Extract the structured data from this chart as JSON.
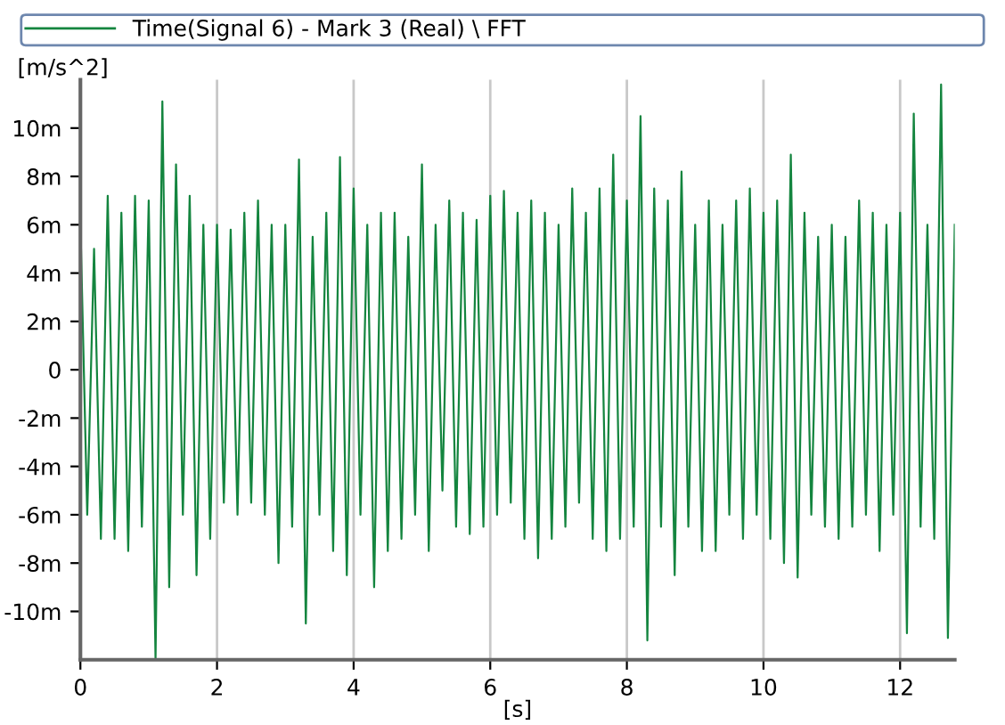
{
  "chart_data": {
    "type": "line",
    "xlabel": "[s]",
    "ylabel": "[m/s^2]",
    "legend": "top",
    "grid": "x",
    "line_style": "solid",
    "marker": "none",
    "xlim": [
      0,
      12.8
    ],
    "xticks": [
      0,
      2,
      4,
      6,
      8,
      10,
      12
    ],
    "ylim": [
      -12,
      12
    ],
    "yticks": [
      {
        "value": -10,
        "label": "-10m"
      },
      {
        "value": -8,
        "label": "-8m"
      },
      {
        "value": -6,
        "label": "-6m"
      },
      {
        "value": -4,
        "label": "-4m"
      },
      {
        "value": -2,
        "label": "-2m"
      },
      0,
      {
        "value": 2,
        "label": "2m"
      },
      {
        "value": 4,
        "label": "4m"
      },
      {
        "value": 6,
        "label": "6m"
      },
      {
        "value": 8,
        "label": "8m"
      },
      {
        "value": 10,
        "label": "10m"
      }
    ],
    "x": [
      0,
      0.1,
      0.2,
      0.3,
      0.4,
      0.5,
      0.6,
      0.7,
      0.8,
      0.9,
      1,
      1.1,
      1.2,
      1.3,
      1.4,
      1.5,
      1.6,
      1.7,
      1.8,
      1.9,
      2,
      2.1,
      2.2,
      2.3,
      2.4,
      2.5,
      2.6,
      2.7,
      2.8,
      2.9,
      3,
      3.1,
      3.2,
      3.3,
      3.4,
      3.5,
      3.6,
      3.7,
      3.8,
      3.9,
      4,
      4.1,
      4.2,
      4.3,
      4.4,
      4.5,
      4.6,
      4.7,
      4.8,
      4.9,
      5,
      5.1,
      5.2,
      5.3,
      5.4,
      5.5,
      5.6,
      5.7,
      5.8,
      5.9,
      6,
      6.1,
      6.2,
      6.3,
      6.4,
      6.5,
      6.6,
      6.7,
      6.8,
      6.9,
      7,
      7.1,
      7.2,
      7.3,
      7.4,
      7.5,
      7.6,
      7.7,
      7.8,
      7.9,
      8,
      8.1,
      8.2,
      8.3,
      8.4,
      8.5,
      8.6,
      8.7,
      8.8,
      8.9,
      9,
      9.1,
      9.2,
      9.3,
      9.4,
      9.5,
      9.6,
      9.7,
      9.8,
      9.9,
      10,
      10.1,
      10.2,
      10.3,
      10.4,
      10.5,
      10.6,
      10.7,
      10.8,
      10.9,
      11,
      11.1,
      11.2,
      11.3,
      11.4,
      11.5,
      11.6,
      11.7,
      11.8,
      11.9,
      12,
      12.1,
      12.2,
      12.3,
      12.4,
      12.5,
      12.6,
      12.7,
      12.8
    ],
    "series": [
      {
        "name": "Time(Signal 6) - Mark 3 (Real) \\ FFT",
        "color": "#14853f",
        "values": [
          6.1,
          -6,
          5,
          -7,
          7.2,
          -7,
          6.5,
          -7.5,
          7.2,
          -6.5,
          7,
          -12,
          11.1,
          -9,
          8.5,
          -6,
          7.2,
          -8.5,
          6,
          -7,
          6,
          -5.5,
          5.8,
          -6,
          6.5,
          -5.5,
          7,
          -6,
          6,
          -8,
          6,
          -6.5,
          8.7,
          -10.5,
          5.5,
          -6,
          6.5,
          -7.5,
          8.8,
          -8.5,
          7.5,
          -6,
          6,
          -9,
          6.5,
          -7.5,
          6.5,
          -7,
          5.5,
          -6,
          8.5,
          -7.5,
          6,
          -5,
          7,
          -6.5,
          6.5,
          -6.8,
          6.2,
          -6.5,
          7.2,
          -6,
          7.4,
          -5.5,
          6.5,
          -7,
          7,
          -7.8,
          6.5,
          -7,
          6,
          -6.5,
          7.5,
          -5.5,
          6.5,
          -7,
          7.5,
          -7.5,
          8.9,
          -7,
          7,
          -6.5,
          10.5,
          -11.2,
          7.5,
          -6.5,
          7,
          -8.5,
          8.2,
          -6.5,
          6,
          -7.5,
          7,
          -7.5,
          6,
          -6,
          7,
          -7,
          7.5,
          -6,
          6.5,
          -7,
          7,
          -8,
          8.9,
          -8.6,
          6.5,
          -6,
          5.5,
          -6.5,
          6,
          -7,
          5.5,
          -6.5,
          7,
          -6,
          6.5,
          -7.5,
          6,
          -6,
          6.5,
          -10.9,
          10.6,
          -6.5,
          6,
          -7,
          11.8,
          -11.1,
          6
        ]
      }
    ]
  }
}
